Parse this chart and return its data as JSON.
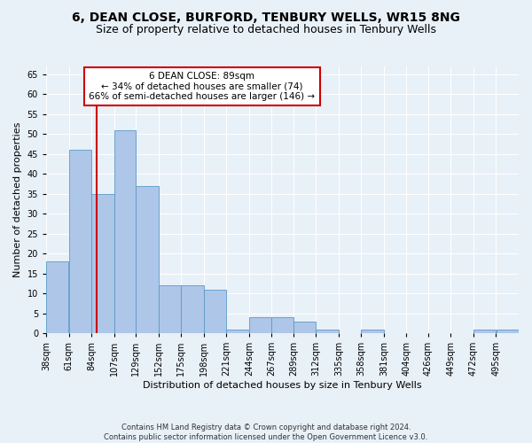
{
  "title1": "6, DEAN CLOSE, BURFORD, TENBURY WELLS, WR15 8NG",
  "title2": "Size of property relative to detached houses in Tenbury Wells",
  "xlabel": "Distribution of detached houses by size in Tenbury Wells",
  "ylabel": "Number of detached properties",
  "footer1": "Contains HM Land Registry data © Crown copyright and database right 2024.",
  "footer2": "Contains public sector information licensed under the Open Government Licence v3.0.",
  "annotation_line1": "6 DEAN CLOSE: 89sqm",
  "annotation_line2": "← 34% of detached houses are smaller (74)",
  "annotation_line3": "66% of semi-detached houses are larger (146) →",
  "bar_color": "#aec6e8",
  "bar_edge_color": "#5a9ac8",
  "vline_color": "#cc0000",
  "vline_x": 89,
  "categories": [
    "38sqm",
    "61sqm",
    "84sqm",
    "107sqm",
    "129sqm",
    "152sqm",
    "175sqm",
    "198sqm",
    "221sqm",
    "244sqm",
    "267sqm",
    "289sqm",
    "312sqm",
    "335sqm",
    "358sqm",
    "381sqm",
    "404sqm",
    "426sqm",
    "449sqm",
    "472sqm",
    "495sqm"
  ],
  "bin_edges": [
    38,
    61,
    84,
    107,
    129,
    152,
    175,
    198,
    221,
    244,
    267,
    289,
    312,
    335,
    358,
    381,
    404,
    426,
    449,
    472,
    495,
    518
  ],
  "values": [
    18,
    46,
    35,
    51,
    37,
    12,
    12,
    11,
    1,
    4,
    4,
    3,
    1,
    0,
    1,
    0,
    0,
    0,
    0,
    1,
    1
  ],
  "ylim": [
    0,
    67
  ],
  "yticks": [
    0,
    5,
    10,
    15,
    20,
    25,
    30,
    35,
    40,
    45,
    50,
    55,
    60,
    65
  ],
  "background_color": "#e8f0f8",
  "grid_color": "#ffffff",
  "title1_fontsize": 10,
  "title2_fontsize": 9,
  "xlabel_fontsize": 8,
  "ylabel_fontsize": 8,
  "tick_fontsize": 7,
  "annotation_fontsize": 7.5,
  "footer_fontsize": 6
}
